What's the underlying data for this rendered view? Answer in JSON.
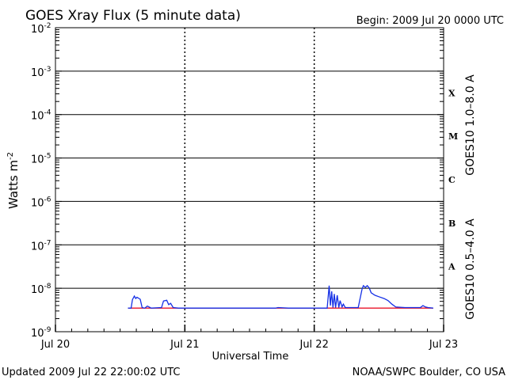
{
  "title": "GOES Xray Flux (5 minute data)",
  "begin_label": "Begin:  2009 Jul 20 0000 UTC",
  "ylabel": "Watts m",
  "ylabel_sup": "-2",
  "xlabel": "Universal Time",
  "footer_left": "Updated 2009 Jul 22 22:00:02 UTC",
  "footer_right": "NOAA/SWPC Boulder, CO USA",
  "right_legend": {
    "long": "GOES10 1.0–8.0 A",
    "long_color": "#e8142a",
    "short": "GOES10 0.5–4.0 A",
    "short_color": "#1530e6"
  },
  "flare_classes": [
    {
      "label": "X",
      "at": 5.5
    },
    {
      "label": "M",
      "at": 4.5
    },
    {
      "label": "C",
      "at": 3.5
    },
    {
      "label": "B",
      "at": 2.5
    },
    {
      "label": "A",
      "at": 1.5
    }
  ],
  "chart_data": {
    "type": "line",
    "title": "GOES Xray Flux (5 minute data)",
    "xlabel": "Universal Time",
    "ylabel": "Watts m-2",
    "y_scale": "log",
    "ylim": [
      1e-09,
      0.01
    ],
    "xlim": [
      0,
      3
    ],
    "x_ticks": [
      {
        "value": 0,
        "label": "Jul 20"
      },
      {
        "value": 1,
        "label": "Jul 21"
      },
      {
        "value": 2,
        "label": "Jul 22"
      },
      {
        "value": 3,
        "label": "Jul 23"
      }
    ],
    "y_ticks": [
      {
        "exp": -9,
        "label": "10",
        "sup": "-9"
      },
      {
        "exp": -8,
        "label": "10",
        "sup": "-8"
      },
      {
        "exp": -7,
        "label": "10",
        "sup": "-7"
      },
      {
        "exp": -6,
        "label": "10",
        "sup": "-6"
      },
      {
        "exp": -5,
        "label": "10",
        "sup": "-5"
      },
      {
        "exp": -4,
        "label": "10",
        "sup": "-4"
      },
      {
        "exp": -3,
        "label": "10",
        "sup": "-3"
      },
      {
        "exp": -2,
        "label": "10",
        "sup": "-2"
      }
    ],
    "grid_lines_exp": [
      -8,
      -7,
      -6,
      -5,
      -4,
      -3
    ],
    "series": [
      {
        "name": "GOES10 1.0–8.0 A",
        "color": "#e8142a",
        "points": [
          [
            0.56,
            3.5e-09
          ],
          [
            2.92,
            3.5e-09
          ]
        ]
      },
      {
        "name": "GOES10 0.5–4.0 A",
        "color": "#1530e6",
        "points": [
          [
            0.56,
            3.5e-09
          ],
          [
            0.585,
            3.5e-09
          ],
          [
            0.595,
            5.5e-09
          ],
          [
            0.61,
            6.6e-09
          ],
          [
            0.62,
            5.8e-09
          ],
          [
            0.63,
            6.2e-09
          ],
          [
            0.655,
            5.6e-09
          ],
          [
            0.67,
            3.6e-09
          ],
          [
            0.69,
            3.5e-09
          ],
          [
            0.71,
            3.9e-09
          ],
          [
            0.74,
            3.5e-09
          ],
          [
            0.82,
            3.6e-09
          ],
          [
            0.835,
            5.1e-09
          ],
          [
            0.86,
            5.3e-09
          ],
          [
            0.875,
            4.2e-09
          ],
          [
            0.89,
            4.5e-09
          ],
          [
            0.91,
            3.6e-09
          ],
          [
            0.95,
            3.5e-09
          ],
          [
            1.02,
            3.5e-09
          ],
          [
            1.7,
            3.5e-09
          ],
          [
            1.72,
            3.6e-09
          ],
          [
            1.8,
            3.5e-09
          ],
          [
            2.1,
            3.5e-09
          ],
          [
            2.115,
            1.15e-08
          ],
          [
            2.125,
            4e-09
          ],
          [
            2.135,
            8.5e-09
          ],
          [
            2.145,
            3.6e-09
          ],
          [
            2.155,
            7.4e-09
          ],
          [
            2.165,
            3.6e-09
          ],
          [
            2.178,
            6.9e-09
          ],
          [
            2.19,
            3.6e-09
          ],
          [
            2.2,
            5.2e-09
          ],
          [
            2.215,
            3.7e-09
          ],
          [
            2.225,
            4.3e-09
          ],
          [
            2.24,
            3.6e-09
          ],
          [
            2.34,
            3.6e-09
          ],
          [
            2.37,
            9.7e-09
          ],
          [
            2.38,
            1.15e-08
          ],
          [
            2.395,
            1.05e-08
          ],
          [
            2.41,
            1.15e-08
          ],
          [
            2.425,
            1.02e-08
          ],
          [
            2.44,
            7.9e-09
          ],
          [
            2.47,
            6.9e-09
          ],
          [
            2.5,
            6.4e-09
          ],
          [
            2.54,
            5.8e-09
          ],
          [
            2.57,
            5.2e-09
          ],
          [
            2.6,
            4.3e-09
          ],
          [
            2.63,
            3.7e-09
          ],
          [
            2.7,
            3.6e-09
          ],
          [
            2.82,
            3.6e-09
          ],
          [
            2.84,
            4e-09
          ],
          [
            2.86,
            3.7e-09
          ],
          [
            2.88,
            3.6e-09
          ],
          [
            2.92,
            3.5e-09
          ]
        ]
      }
    ]
  }
}
